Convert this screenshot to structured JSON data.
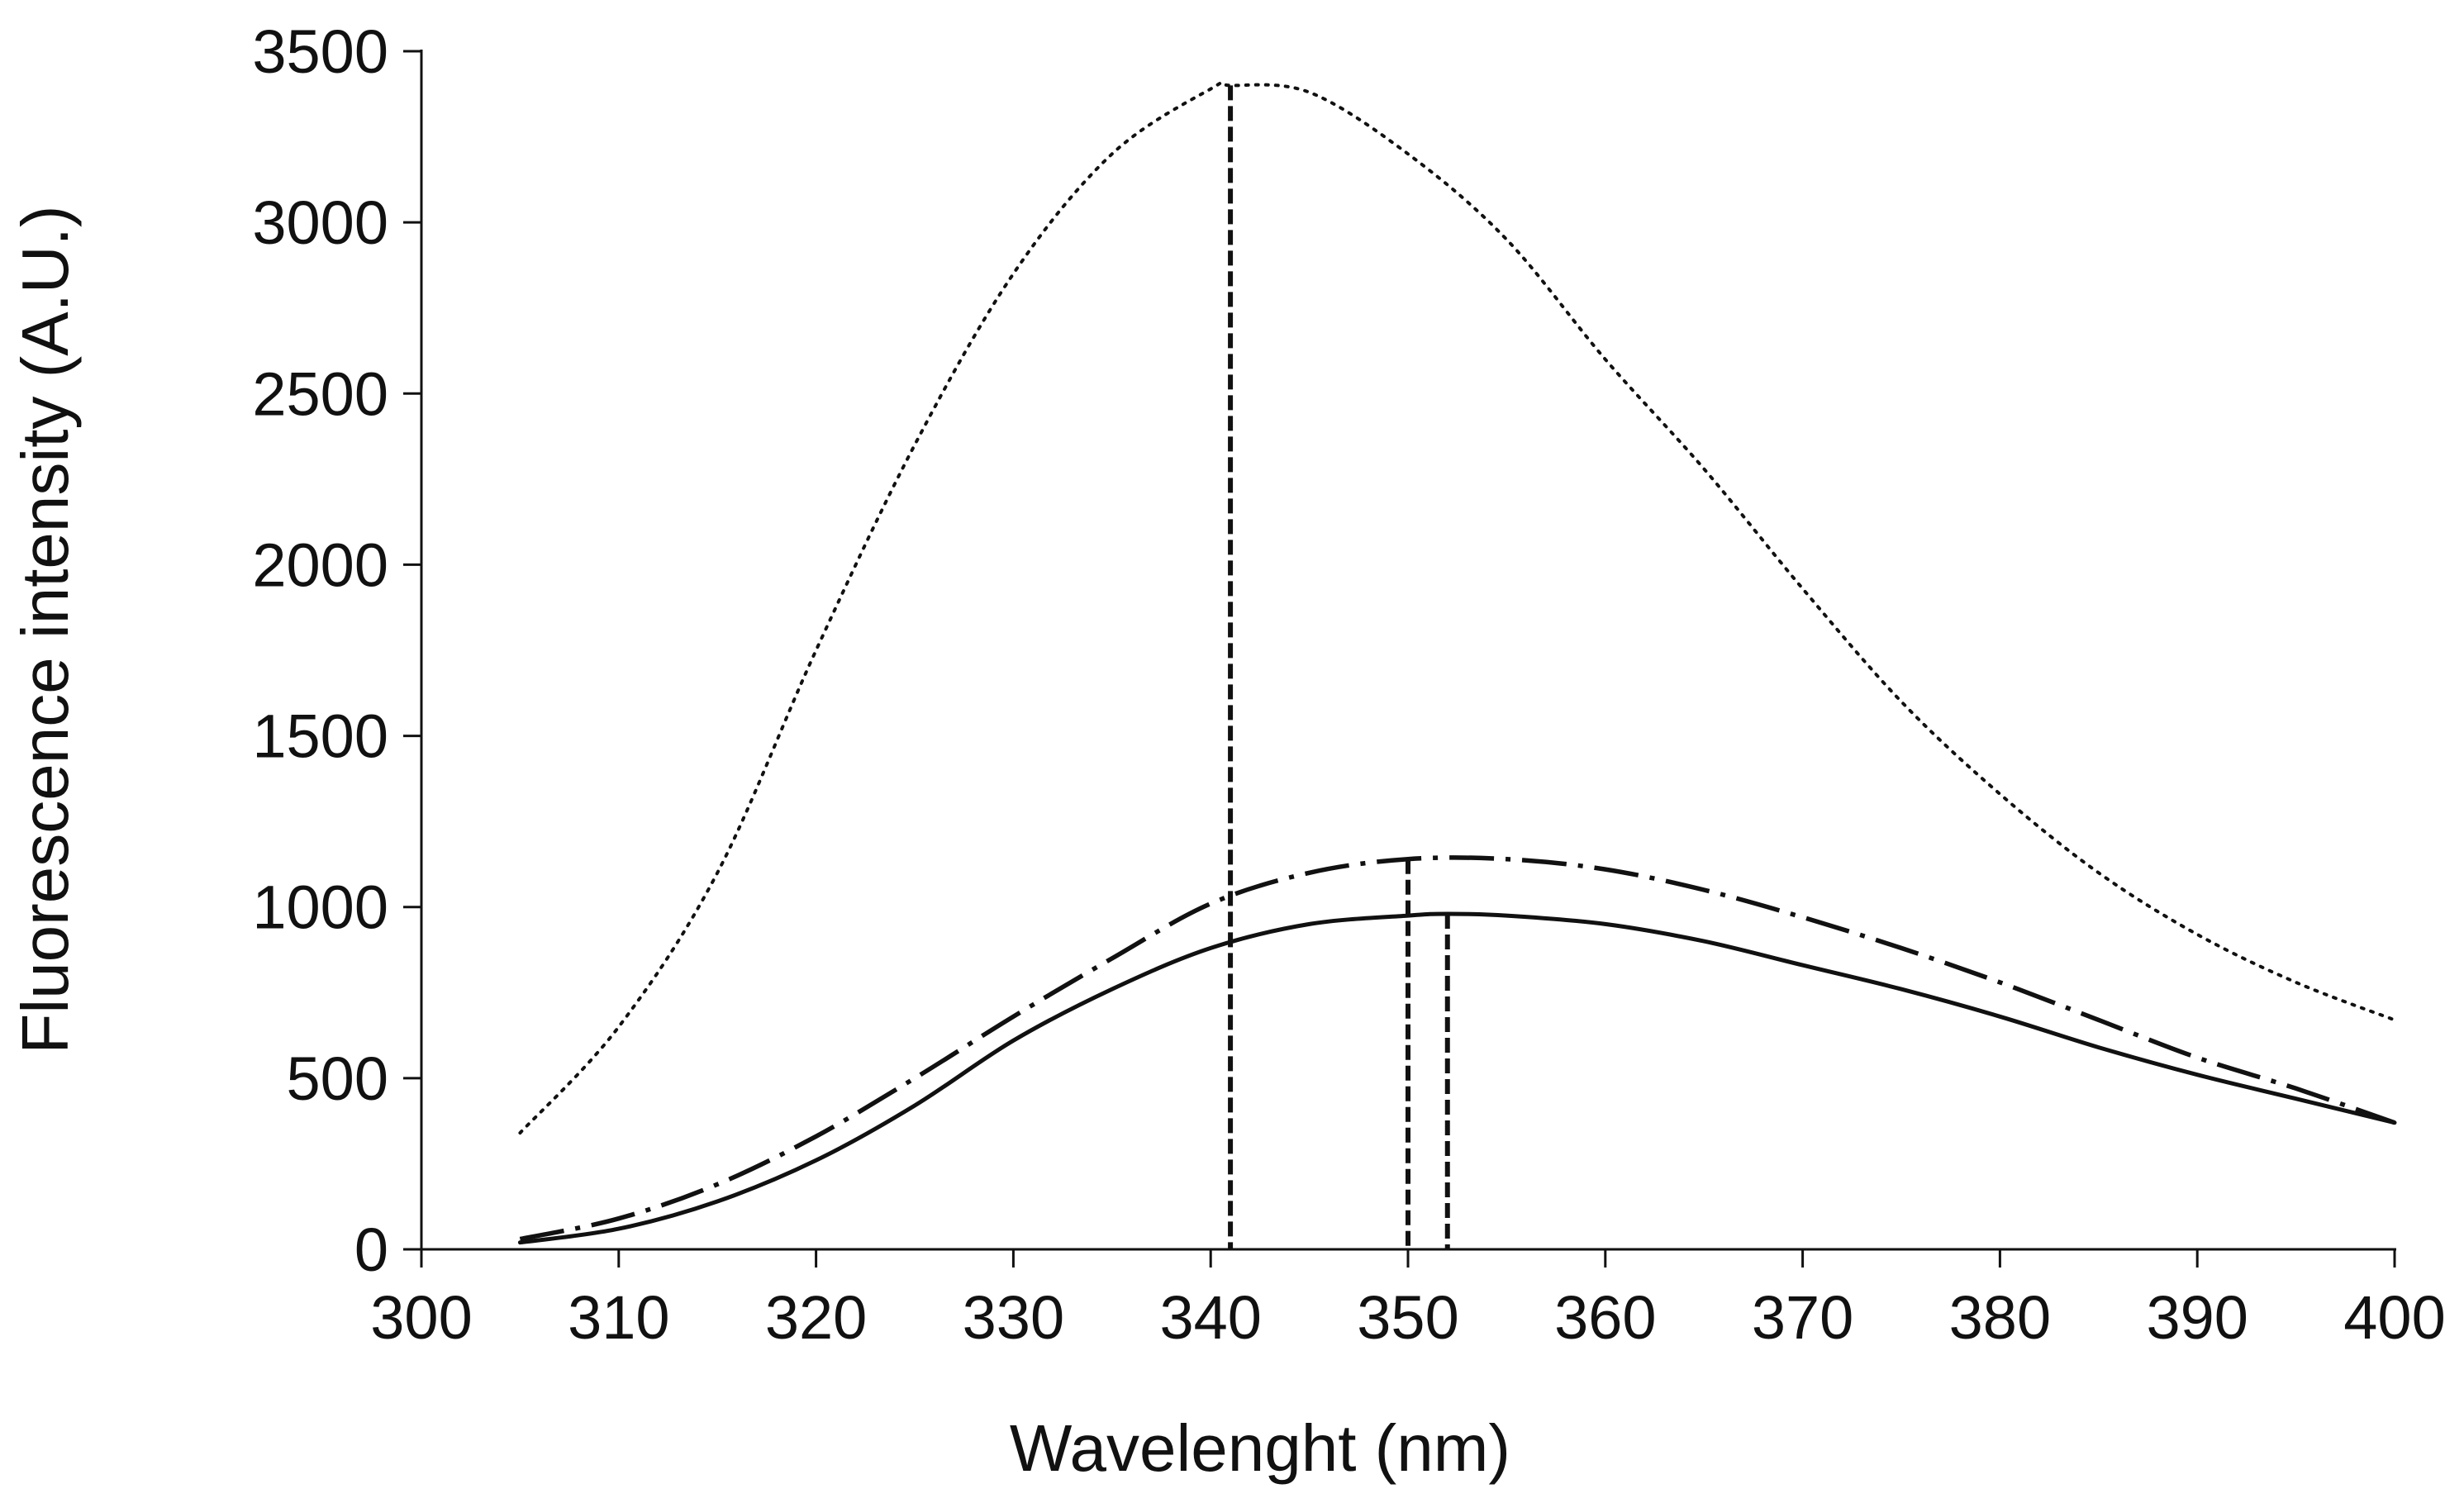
{
  "chart_data": {
    "type": "line",
    "title": "",
    "xlabel": "Wavelenght (nm)",
    "ylabel": "Fluorescence intensity (A.U.)",
    "xlim": [
      300,
      400
    ],
    "ylim": [
      0,
      3500
    ],
    "xticks": [
      300,
      310,
      320,
      330,
      340,
      350,
      360,
      370,
      380,
      390,
      400
    ],
    "yticks": [
      0,
      500,
      1000,
      1500,
      2000,
      2500,
      3000,
      3500
    ],
    "x_tick_labels": [
      "300",
      "310",
      "320",
      "330",
      "340",
      "350",
      "360",
      "370",
      "380",
      "390",
      "400"
    ],
    "y_tick_labels": [
      "0",
      "500",
      "1000",
      "1500",
      "2000",
      "2500",
      "3000",
      "3500"
    ],
    "grid": false,
    "legend": "none",
    "series": [
      {
        "name": "dotted",
        "style": "dotted",
        "x": [
          305,
          310,
          315,
          320,
          325,
          330,
          335,
          340,
          341,
          345,
          350,
          355,
          360,
          365,
          370,
          375,
          380,
          385,
          390,
          395,
          400
        ],
        "values": [
          340,
          650,
          1100,
          1750,
          2350,
          2850,
          3200,
          3390,
          3400,
          3380,
          3200,
          2950,
          2600,
          2280,
          1930,
          1600,
          1330,
          1100,
          920,
          780,
          670
        ]
      },
      {
        "name": "dash-dot",
        "style": "dashdot",
        "x": [
          305,
          310,
          315,
          320,
          325,
          330,
          335,
          340,
          345,
          350,
          355,
          360,
          365,
          370,
          375,
          380,
          385,
          390,
          395,
          400
        ],
        "values": [
          30,
          90,
          190,
          330,
          500,
          680,
          850,
          1010,
          1100,
          1140,
          1140,
          1110,
          1050,
          970,
          880,
          780,
          670,
          560,
          470,
          370
        ]
      },
      {
        "name": "solid",
        "style": "solid",
        "x": [
          305,
          310,
          315,
          320,
          325,
          330,
          335,
          340,
          345,
          350,
          352,
          355,
          360,
          365,
          370,
          375,
          380,
          385,
          390,
          395,
          400
        ],
        "values": [
          20,
          60,
          140,
          260,
          420,
          610,
          760,
          880,
          950,
          975,
          980,
          975,
          950,
          900,
          830,
          760,
          680,
          590,
          510,
          440,
          370
        ]
      }
    ],
    "peak_markers": [
      {
        "x": 341,
        "y": 3400
      },
      {
        "x": 350,
        "y": 1140
      },
      {
        "x": 352,
        "y": 980
      }
    ]
  }
}
